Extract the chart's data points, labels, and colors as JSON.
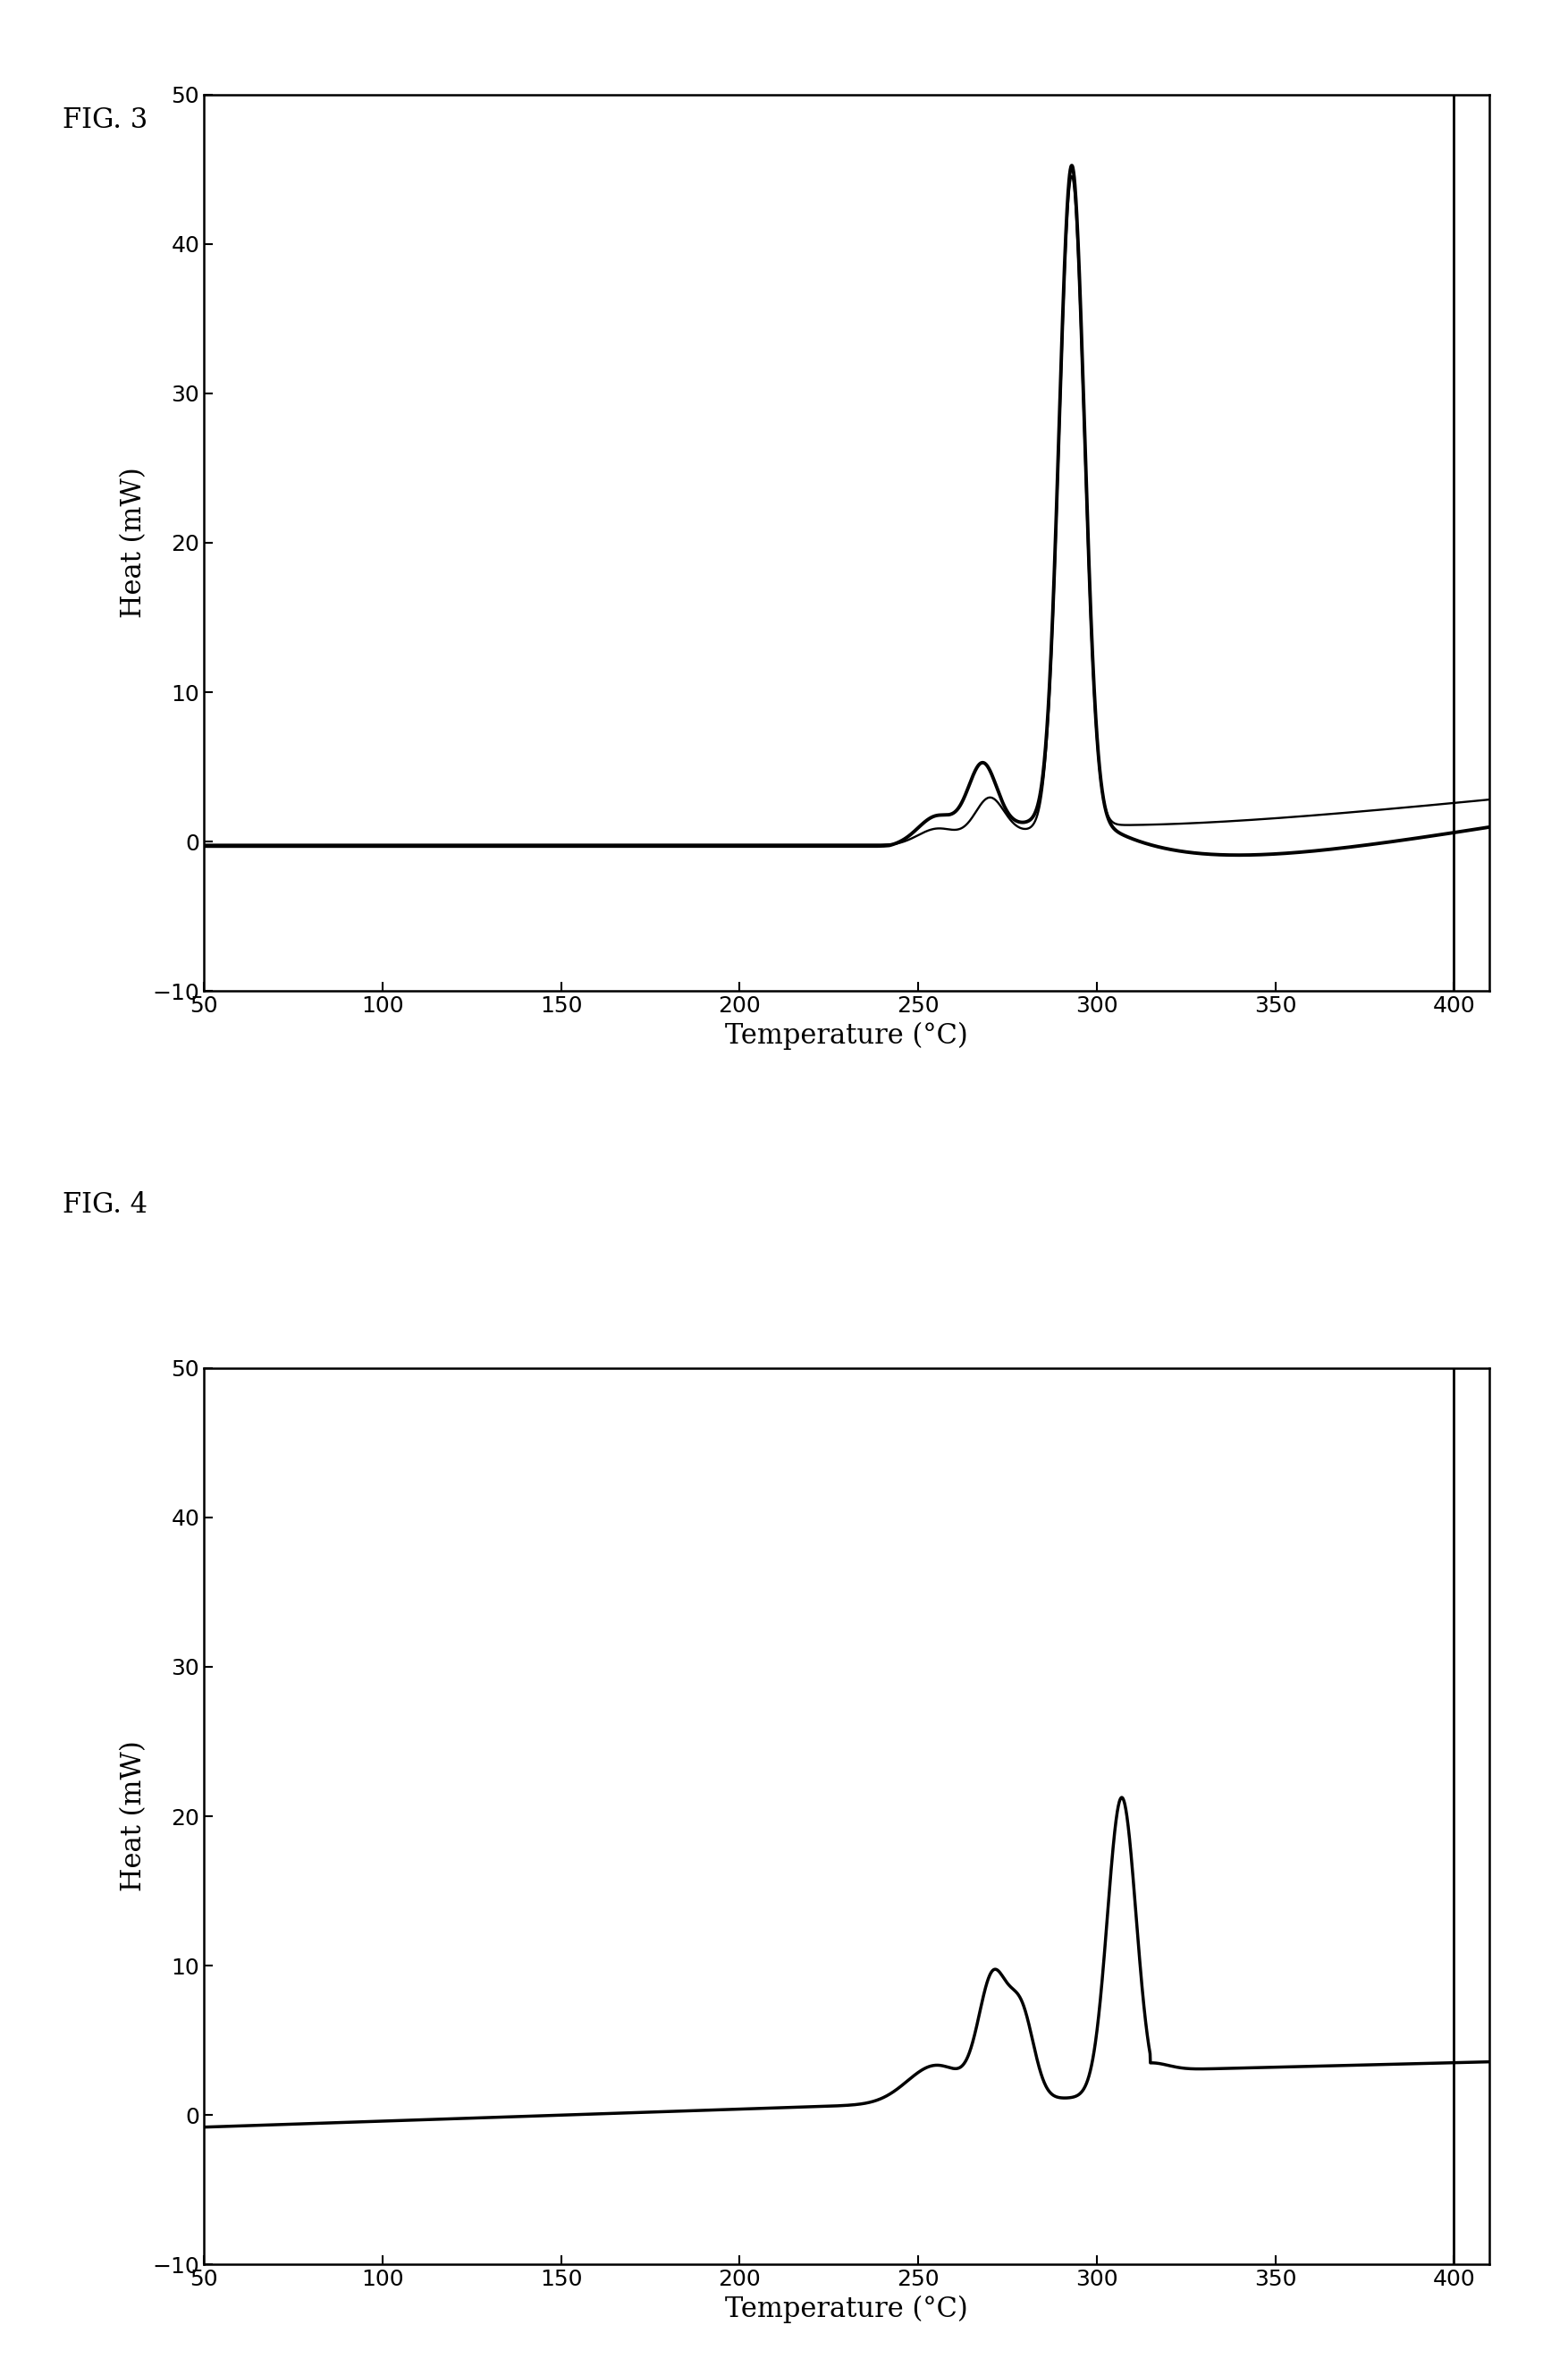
{
  "fig3_label": "FIG. 3",
  "fig4_label": "FIG. 4",
  "xlabel": "Temperature (°C)",
  "ylabel": "Heat (mW)",
  "xlim": [
    50,
    410
  ],
  "ylim": [
    -10,
    50
  ],
  "xticks": [
    50,
    100,
    150,
    200,
    250,
    300,
    350,
    400
  ],
  "yticks": [
    -10,
    0,
    10,
    20,
    30,
    40,
    50
  ],
  "line_color": "#000000",
  "background_color": "#ffffff",
  "linewidth": 2.0
}
